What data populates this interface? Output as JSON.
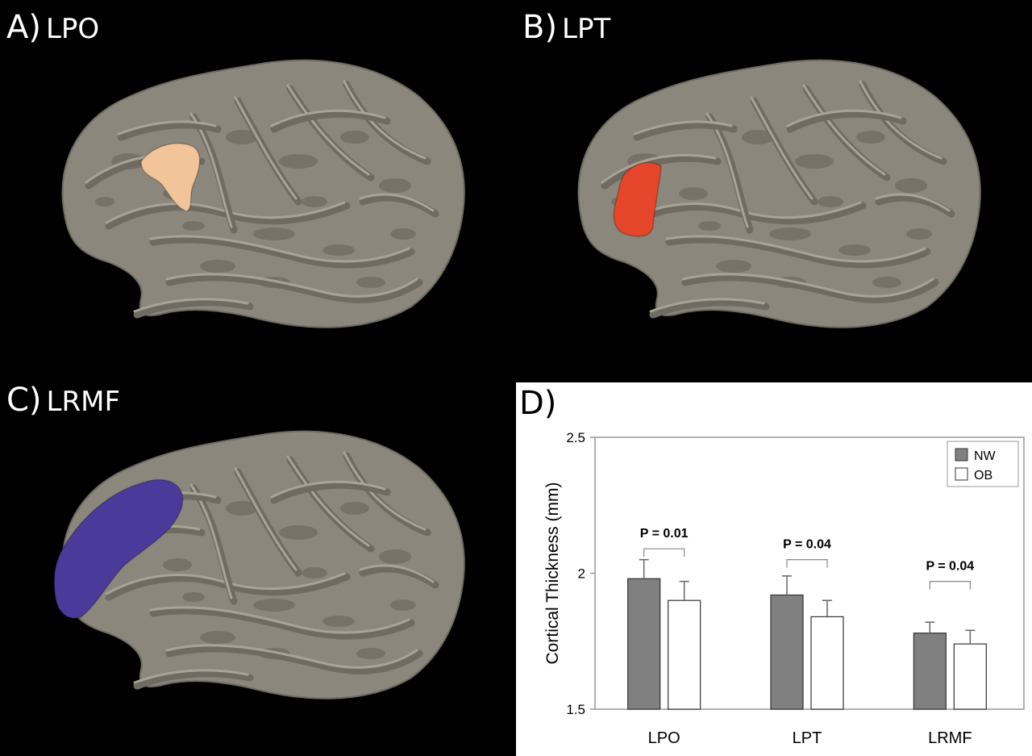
{
  "panels": {
    "a": {
      "letter": "A)",
      "region": "LPO",
      "highlight_color": "#f2c49a"
    },
    "b": {
      "letter": "B)",
      "region": "LPT",
      "highlight_color": "#e5452a"
    },
    "c": {
      "letter": "C)",
      "region": "LRMF",
      "highlight_color": "#4a3a9a"
    },
    "d": {
      "letter": "D)"
    }
  },
  "colors": {
    "background": "#000000",
    "cortex": "#8b877c",
    "cortex_light": "#a7a397",
    "cortex_dark": "#6f6b62",
    "nw_bar": "#808080",
    "ob_bar": "#ffffff"
  },
  "chart_data": {
    "type": "bar",
    "categories": [
      "LPO",
      "LPT",
      "LRMF"
    ],
    "series": [
      {
        "name": "NW",
        "values": [
          1.98,
          1.92,
          1.78
        ],
        "errors": [
          0.07,
          0.07,
          0.04
        ]
      },
      {
        "name": "OB",
        "values": [
          1.9,
          1.84,
          1.74
        ],
        "errors": [
          0.07,
          0.06,
          0.05
        ]
      }
    ],
    "ylabel": "Cortical Thickness (mm)",
    "ylim": [
      1.5,
      2.5
    ],
    "yticks": [
      "1.5",
      "2",
      "2.5"
    ],
    "annotations": [
      "P = 0.01",
      "P = 0.04",
      "P = 0.04"
    ],
    "annotation_levels": [
      2.09,
      2.05,
      1.97
    ],
    "legend_position": "top-right",
    "grid": false
  }
}
